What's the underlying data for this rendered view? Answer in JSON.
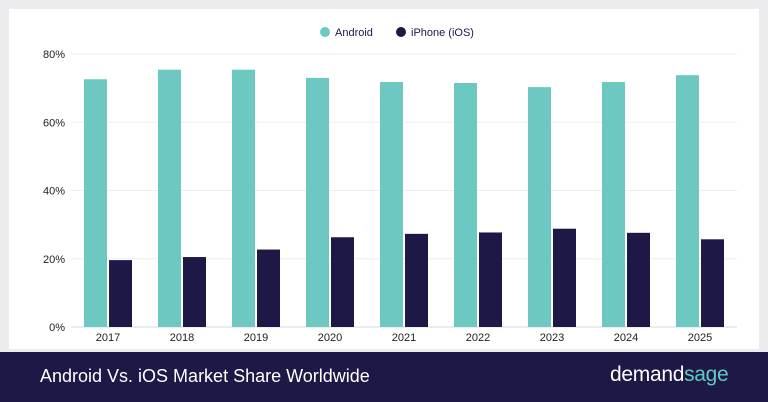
{
  "chart_data": {
    "type": "bar",
    "categories": [
      "2017",
      "2018",
      "2019",
      "2020",
      "2021",
      "2022",
      "2023",
      "2024",
      "2025"
    ],
    "series": [
      {
        "name": "Android",
        "color": "#6ec8c2",
        "values": [
          72.6,
          75.4,
          75.4,
          73.0,
          71.8,
          71.5,
          70.3,
          71.8,
          73.8
        ]
      },
      {
        "name": "iPhone (iOS)",
        "color": "#1e1846",
        "values": [
          19.6,
          20.5,
          22.7,
          26.3,
          27.3,
          27.7,
          28.8,
          27.6,
          25.7
        ]
      }
    ],
    "ylim": [
      0,
      80
    ],
    "yticks": [
      0,
      20,
      40,
      60,
      80
    ],
    "ytick_labels": [
      "0%",
      "20%",
      "40%",
      "60%",
      "80%"
    ],
    "grid": true,
    "legend": "top-center"
  },
  "footer": {
    "title": "Android Vs. iOS Market Share Worldwide",
    "brand_primary": "demand",
    "brand_accent": "sage"
  }
}
